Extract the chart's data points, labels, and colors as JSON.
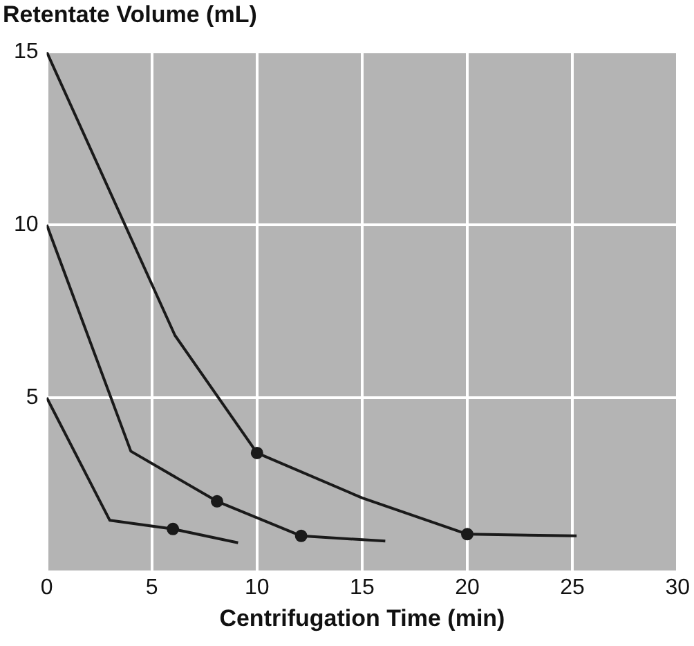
{
  "chart_data": {
    "type": "line",
    "ylabel": "Retentate Volume (mL)",
    "xlabel": "Centrifugation Time (min)",
    "xlim": [
      0,
      30
    ],
    "xticks": [
      0,
      5,
      10,
      15,
      20,
      25,
      30
    ],
    "ylim": [
      0,
      15
    ],
    "yticks": [
      5,
      10,
      15
    ],
    "grid": true,
    "legend": false,
    "line_style": "solid",
    "series": [
      {
        "color": "#1a1a1a",
        "marker": "none",
        "x": [
          0,
          6.1,
          10,
          15,
          20,
          25.2
        ],
        "values": [
          15,
          6.8,
          3.4,
          2.1,
          1.05,
          1.0
        ]
      },
      {
        "color": "#1a1a1a",
        "marker": "none",
        "x": [
          0,
          4,
          8.1,
          12.1,
          16.1
        ],
        "values": [
          10,
          3.45,
          2.0,
          1.0,
          0.85
        ]
      },
      {
        "color": "#1a1a1a",
        "marker": "none",
        "x": [
          0,
          3,
          6,
          9.1
        ],
        "values": [
          5,
          1.45,
          1.2,
          0.8
        ]
      },
      {
        "type": "scatter",
        "color": "#1a1a1a",
        "marker": "circle",
        "x": [
          10,
          20,
          8.1,
          12.1,
          6
        ],
        "values": [
          3.4,
          1.05,
          2.0,
          1.0,
          1.2
        ]
      }
    ]
  }
}
